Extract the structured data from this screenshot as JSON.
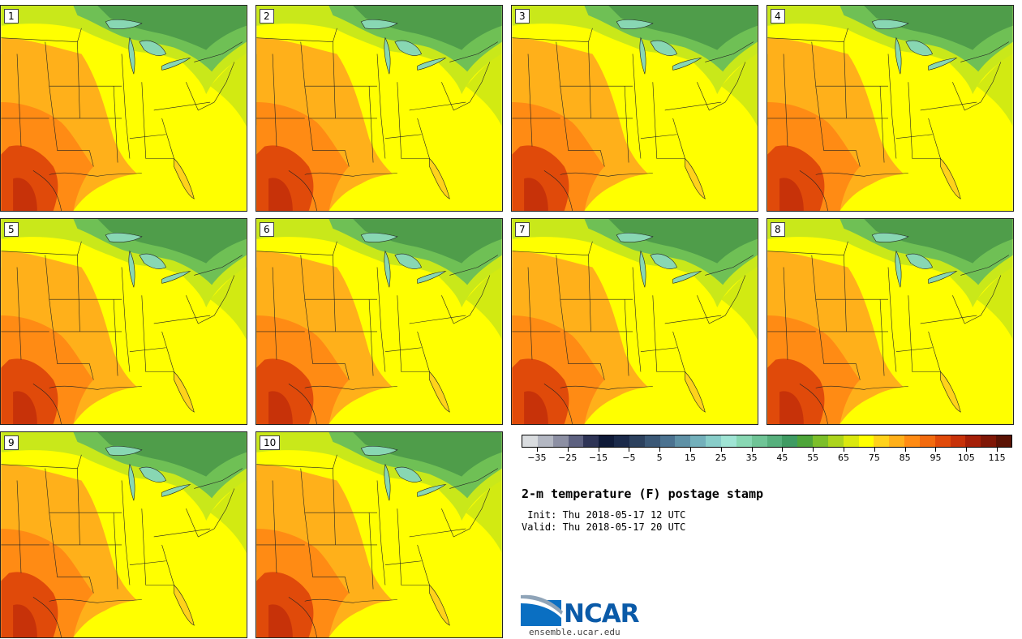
{
  "panels": [
    {
      "label": "1"
    },
    {
      "label": "2"
    },
    {
      "label": "3"
    },
    {
      "label": "4"
    },
    {
      "label": "5"
    },
    {
      "label": "6"
    },
    {
      "label": "7"
    },
    {
      "label": "8"
    },
    {
      "label": "9"
    },
    {
      "label": "10"
    }
  ],
  "colorbar": {
    "colors": [
      "#d9dcdf",
      "#b3b7c2",
      "#8c8fa3",
      "#5d6180",
      "#2e3456",
      "#0f1a38",
      "#1b2a4a",
      "#2c415e",
      "#3b5876",
      "#4b7290",
      "#5f91a6",
      "#73b0bb",
      "#88cdc9",
      "#9fe4d4",
      "#88d7b3",
      "#6fc496",
      "#57b07d",
      "#3f9b63",
      "#4ea53a",
      "#7cbf2a",
      "#acd41d",
      "#dae80f",
      "#ffff00",
      "#ffd21b",
      "#ffb01a",
      "#ff8b14",
      "#f26b0f",
      "#e04a0a",
      "#c73209",
      "#a51f08",
      "#7f1706",
      "#5a1204"
    ],
    "tick_labels": [
      "−35",
      "−25",
      "−15",
      "−5",
      "5",
      "15",
      "25",
      "35",
      "45",
      "55",
      "65",
      "75",
      "85",
      "95",
      "105",
      "115"
    ],
    "min": -40,
    "max": 120
  },
  "title": "2-m temperature (F) postage stamp",
  "init": " Init: Thu 2018-05-17 12 UTC",
  "valid": "Valid: Thu 2018-05-17 20 UTC",
  "logo_text": "NCAR",
  "site": "ensemble.ucar.edu"
}
